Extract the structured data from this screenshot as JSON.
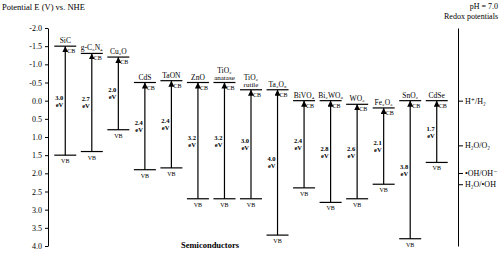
{
  "chart_data": {
    "type": "band_edge",
    "y_label": "Potential E (V) vs. NHE",
    "x_label": "Semiconductors",
    "y2_label": "pH = 7.0",
    "y2_sublabel": "Redox potentials",
    "cb_label": "CB",
    "vb_label": "VB",
    "color": "#000000",
    "ylim": [
      -2,
      4
    ],
    "yticks": [
      {
        "value": -2,
        "label": "-2.0"
      },
      -1.5,
      {
        "value": -1,
        "label": "-1.0"
      },
      -0.5,
      {
        "value": 0,
        "label": "0.0"
      },
      0.5,
      {
        "value": 1,
        "label": "1.0"
      },
      1.5,
      {
        "value": 2,
        "label": "2.0"
      },
      2.5,
      {
        "value": 3,
        "label": "3.0"
      },
      3.5,
      {
        "value": 4,
        "label": "4.0"
      }
    ],
    "y2lim": [
      -2,
      4
    ],
    "y2ticks": [
      {
        "value": 0,
        "label": "H⁺/H₂"
      },
      {
        "value": 1.23,
        "label": "H₂O/O₂"
      },
      {
        "value": 1.99,
        "label": "•OH/OH⁻"
      },
      {
        "value": 2.3,
        "label": "H₂O/•OH"
      }
    ],
    "semiconductors": [
      {
        "name": "SiC",
        "cb": -1.5,
        "vb": 1.5,
        "gap": 3.0,
        "gap_label": "3.0 eV"
      },
      {
        "name": "g-C₃N₄",
        "cb": -1.3,
        "vb": 1.4,
        "gap": 2.7,
        "gap_label": "2.7 eV"
      },
      {
        "name": "Cu₂O",
        "cb": -1.2,
        "vb": 0.8,
        "gap": 2.0,
        "gap_label": "2.0 eV"
      },
      {
        "name": "CdS",
        "cb": -0.5,
        "vb": 1.9,
        "gap": 2.4,
        "gap_label": "2.4 eV"
      },
      {
        "name": "TaON",
        "cb": -0.55,
        "vb": 1.85,
        "gap": 2.4,
        "gap_label": "2.4 eV"
      },
      {
        "name": "ZnO",
        "cb": -0.5,
        "vb": 2.7,
        "gap": 3.2,
        "gap_label": "3.2 eV"
      },
      {
        "name": "TiO₂",
        "phase": "anatase",
        "cb": -0.5,
        "vb": 2.7,
        "gap": 3.2,
        "gap_label": "3.2 eV"
      },
      {
        "name": "TiO₂",
        "phase": "rutile",
        "cb": -0.3,
        "vb": 2.7,
        "gap": 3.0,
        "gap_label": "3.0 eV"
      },
      {
        "name": "Ta₂O₅",
        "cb": -0.3,
        "vb": 3.7,
        "gap": 4.0,
        "gap_label": "4.0 eV"
      },
      {
        "name": "BiVO₄",
        "cb": 0.0,
        "vb": 2.4,
        "gap": 2.4,
        "gap_label": "2.4 eV"
      },
      {
        "name": "Bi₂WO₆",
        "cb": 0.0,
        "vb": 2.8,
        "gap": 2.8,
        "gap_label": "2.8 eV"
      },
      {
        "name": "WO₃",
        "cb": 0.1,
        "vb": 2.7,
        "gap": 2.6,
        "gap_label": "2.6 eV"
      },
      {
        "name": "Fe₂O₃",
        "cb": 0.2,
        "vb": 2.3,
        "gap": 2.1,
        "gap_label": "2.1 eV"
      },
      {
        "name": "SnO₂",
        "cb": 0.0,
        "vb": 3.8,
        "gap": 3.8,
        "gap_label": "3.8 eV"
      },
      {
        "name": "CdSe",
        "cb": 0.0,
        "vb": 1.7,
        "gap": 1.7,
        "gap_label": "1.7 eV"
      }
    ]
  }
}
